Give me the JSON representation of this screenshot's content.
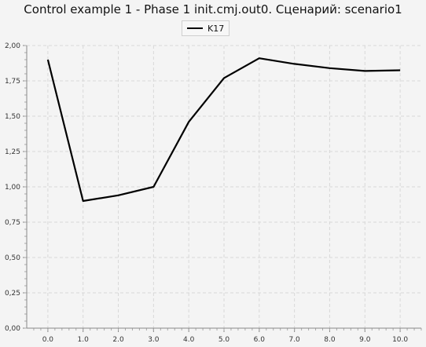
{
  "chart_data": {
    "type": "line",
    "title": "Control example 1 - Phase 1 init.cmj.out0. Сценарий: scenario1",
    "xlabel": "",
    "ylabel": "",
    "x": [
      0.0,
      1.0,
      2.0,
      3.0,
      4.0,
      5.0,
      6.0,
      7.0,
      8.0,
      9.0,
      10.0
    ],
    "x_ticks": [
      "0.0",
      "1.0",
      "2.0",
      "3.0",
      "4.0",
      "5.0",
      "6.0",
      "7.0",
      "8.0",
      "9.0",
      "10.0"
    ],
    "y_ticks": [
      "0,00",
      "0,25",
      "0,50",
      "0,75",
      "1,00",
      "1,25",
      "1,50",
      "1,75",
      "2,00"
    ],
    "xlim": [
      -0.6,
      10.6
    ],
    "ylim": [
      0,
      2.0
    ],
    "grid": true,
    "legend_position": "top-center",
    "series": [
      {
        "name": "K17",
        "color": "#000000",
        "values": [
          1.9,
          0.9,
          0.94,
          1.0,
          1.46,
          1.77,
          1.91,
          1.87,
          1.84,
          1.82,
          1.825
        ]
      }
    ]
  }
}
